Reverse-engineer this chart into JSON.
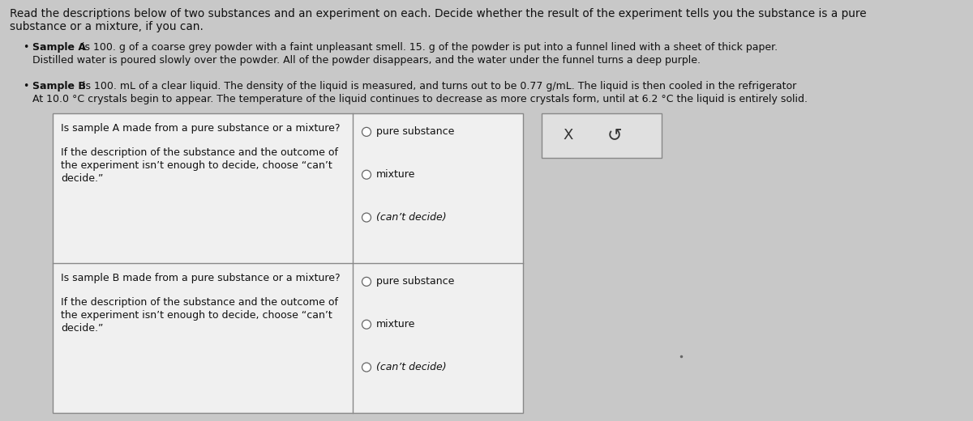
{
  "bg_color": "#c8c8c8",
  "box_color": "#f0f0f0",
  "box_border": "#888888",
  "header_text_line1": "Read the descriptions below of two substances and an experiment on each. Decide whether the result of the experiment tells you the substance is a pure",
  "header_text_line2": "substance or a mixture, if you can.",
  "sample_a_bold": "Sample A",
  "sample_a_rest_line1": " is 100. g of a coarse grey powder with a faint unpleasant smell. 15. g of the powder is put into a funnel lined with a sheet of thick paper.",
  "sample_a_rest_line2": "Distilled water is poured slowly over the powder. All of the powder disappears, and the water under the funnel turns a deep purple.",
  "sample_b_bold": "Sample B",
  "sample_b_rest_line1": " is 100. mL of a clear liquid. The density of the liquid is measured, and turns out to be 0.77 g/mL. The liquid is then cooled in the refrigerator",
  "sample_b_rest_line2": "At 10.0 °C crystals begin to appear. The temperature of the liquid continues to decrease as more crystals form, until at 6.2 °C the liquid is entirely solid.",
  "row1_q_line1": "Is sample A made from a pure substance or a mixture?",
  "row1_q_line2": "",
  "row1_q_line3": "If the description of the substance and the outcome of",
  "row1_q_line4": "the experiment isn’t enough to decide, choose “can’t",
  "row1_q_line5": "decide.”",
  "row2_q_line1": "Is sample B made from a pure substance or a mixture?",
  "row2_q_line2": "",
  "row2_q_line3": "If the description of the substance and the outcome of",
  "row2_q_line4": "the experiment isn’t enough to decide, choose “can’t",
  "row2_q_line5": "decide.”",
  "options": [
    "pure substance",
    "mixture",
    "(can’t decide)"
  ],
  "font_size_header": 9.8,
  "font_size_body": 9.0,
  "font_size_options": 9.0,
  "radio_size": 5.5,
  "text_color": "#111111"
}
